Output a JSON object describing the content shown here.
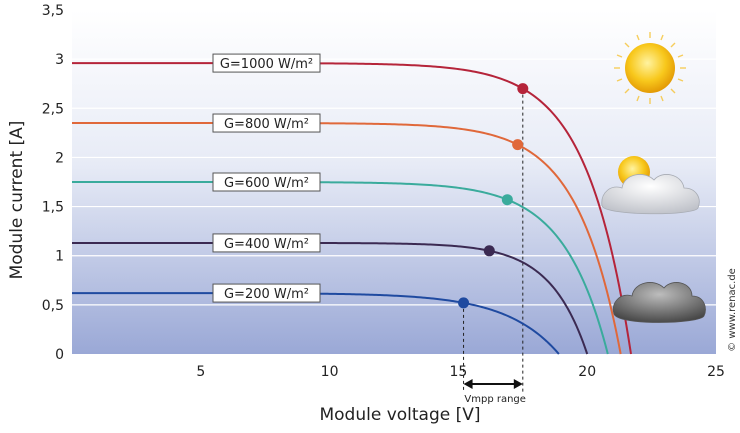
{
  "chart_data": {
    "type": "line",
    "title": "",
    "xlabel": "Module voltage [V]",
    "ylabel": "Module current [A]",
    "xlim": [
      0,
      25
    ],
    "ylim": [
      0,
      3.5
    ],
    "x_ticks": [
      "5",
      "10",
      "15",
      "20",
      "25"
    ],
    "y_ticks": [
      "0",
      "0,5",
      "1",
      "1,5",
      "2",
      "2,5",
      "3",
      "3,5"
    ],
    "grid": "horizontal",
    "series": [
      {
        "name": "G=1000 W/m²",
        "color": "#b5243a",
        "isc": 2.96,
        "voc": 21.7,
        "mpp": {
          "x": 17.5,
          "y": 2.7
        }
      },
      {
        "name": "G=800 W/m²",
        "color": "#e0683a",
        "isc": 2.35,
        "voc": 21.3,
        "mpp": {
          "x": 17.3,
          "y": 2.13
        }
      },
      {
        "name": "G=600 W/m²",
        "color": "#3aab9c",
        "isc": 1.75,
        "voc": 20.8,
        "mpp": {
          "x": 16.9,
          "y": 1.57
        }
      },
      {
        "name": "G=400 W/m²",
        "color": "#3b2a52",
        "isc": 1.13,
        "voc": 20.0,
        "mpp": {
          "x": 16.2,
          "y": 1.05
        }
      },
      {
        "name": "G=200 W/m²",
        "color": "#1f4aa0",
        "isc": 0.62,
        "voc": 18.9,
        "mpp": {
          "x": 15.2,
          "y": 0.52
        }
      }
    ],
    "annotations": {
      "vmpp_label": "Vmpp range",
      "vmpp_range": [
        15.2,
        17.5
      ],
      "credit": "© www.renac.de"
    },
    "weather_icons": [
      "sun-icon",
      "sun-behind-cloud-icon",
      "dark-cloud-icon"
    ]
  }
}
